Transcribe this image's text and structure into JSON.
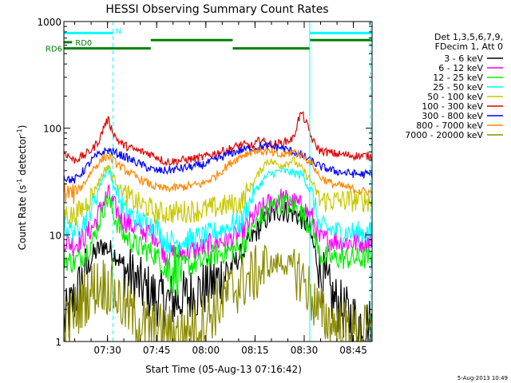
{
  "chart_data": {
    "type": "line",
    "title": "HESSI Observing Summary Count Rates",
    "xlabel": "Start Time (05-Aug-13 07:16:42)",
    "ylabel_main": "Count Rate (s",
    "ylabel_sup1": "-1",
    "ylabel_mid": " detector",
    "ylabel_sup2": "-1",
    "ylabel_end": ")",
    "yscale": "log",
    "ylim": [
      1,
      1000
    ],
    "xlim_minutes": [
      0,
      94
    ],
    "x_ticks": [
      {
        "label": "07:30",
        "min": 13.3
      },
      {
        "label": "07:45",
        "min": 28.3
      },
      {
        "label": "08:00",
        "min": 43.3
      },
      {
        "label": "08:15",
        "min": 58.3
      },
      {
        "label": "08:30",
        "min": 73.3
      },
      {
        "label": "08:45",
        "min": 88.3
      }
    ],
    "y_ticks": [
      {
        "label": "1",
        "value": 1
      },
      {
        "label": "10",
        "value": 10
      },
      {
        "label": "100",
        "value": 100
      },
      {
        "label": "1000",
        "value": 1000
      }
    ],
    "legend_header": [
      "Det 1,3,5,6,7,9,",
      "FDecim 1, Att 0"
    ],
    "legend_position": "right",
    "footer_date": "5-Aug-2013 10:49",
    "series": [
      {
        "name": "3 - 6 keV",
        "color": "#000000",
        "x": [
          0,
          3,
          6,
          9,
          12,
          14,
          16,
          18,
          20,
          24,
          28,
          31,
          36,
          42,
          46,
          50,
          54,
          58,
          62,
          66,
          70,
          73,
          75,
          78,
          82,
          86,
          90,
          94
        ],
        "y": [
          1.5,
          2.4,
          4.0,
          6.5,
          8.0,
          7.2,
          6.5,
          5.0,
          4.2,
          3.2,
          2.6,
          2.4,
          2.5,
          3.0,
          3.6,
          4.5,
          6.5,
          10.0,
          14.5,
          17.0,
          16.0,
          14.0,
          11.0,
          4.5,
          2.5,
          1.8,
          1.5,
          1.4
        ]
      },
      {
        "name": "6 - 12 keV",
        "color": "#ff00ff",
        "x": [
          0,
          3,
          6,
          9,
          12,
          13.5,
          15,
          18,
          22,
          26,
          28,
          31,
          36,
          42,
          46,
          50,
          54,
          58,
          62,
          66,
          70,
          73,
          76,
          78,
          82,
          86,
          90,
          94
        ],
        "y": [
          9.0,
          8.0,
          9.5,
          12.0,
          20.0,
          24.0,
          19.0,
          14.0,
          11.5,
          10.5,
          10.0,
          6.5,
          6.8,
          7.5,
          8.5,
          9.0,
          10.0,
          15.0,
          19.0,
          22.0,
          20.0,
          18.0,
          14.0,
          9.0,
          9.0,
          8.5,
          8.5,
          9.0
        ]
      },
      {
        "name": "12 - 25 keV",
        "color": "#00ee00",
        "x": [
          0,
          3,
          6,
          9,
          12,
          13.5,
          15,
          18,
          22,
          26,
          28,
          31,
          36,
          42,
          46,
          50,
          54,
          58,
          62,
          66,
          70,
          73,
          76,
          78,
          82,
          86,
          90,
          94
        ],
        "y": [
          6.0,
          5.5,
          6.5,
          9.0,
          18.0,
          22.0,
          16.0,
          10.0,
          8.0,
          7.0,
          6.5,
          4.8,
          5.0,
          5.5,
          6.5,
          7.0,
          7.5,
          12.0,
          17.0,
          20.0,
          18.5,
          15.0,
          11.0,
          6.5,
          6.0,
          6.0,
          6.0,
          6.0
        ]
      },
      {
        "name": "25 - 50 keV",
        "color": "#00ffff",
        "x": [
          0,
          3,
          6,
          9,
          12,
          13.5,
          15,
          18,
          22,
          26,
          28,
          31,
          36,
          42,
          46,
          50,
          54,
          58,
          62,
          66,
          70,
          73,
          76,
          78,
          82,
          86,
          90,
          94
        ],
        "y": [
          12.0,
          11.0,
          13.0,
          20.0,
          35.0,
          42.0,
          30.0,
          18.0,
          14.0,
          12.5,
          12.0,
          8.5,
          8.8,
          9.5,
          10.5,
          12.0,
          13.0,
          25.0,
          36.0,
          40.0,
          38.0,
          36.0,
          22.0,
          12.0,
          11.0,
          10.5,
          10.5,
          10.5
        ]
      },
      {
        "name": "50 - 100 keV",
        "color": "#c8c800",
        "x": [
          0,
          3,
          6,
          9,
          12,
          13.5,
          15,
          18,
          22,
          26,
          28,
          31,
          36,
          42,
          46,
          50,
          54,
          58,
          62,
          66,
          70,
          73,
          76,
          78,
          82,
          86,
          90,
          94
        ],
        "y": [
          16.0,
          15.0,
          18.0,
          25.0,
          38.0,
          45.0,
          35.0,
          25.0,
          20.0,
          18.0,
          16.0,
          16.0,
          16.5,
          17.0,
          18.0,
          19.0,
          20.0,
          32.0,
          50.0,
          45.0,
          50.0,
          40.0,
          30.0,
          21.0,
          21.0,
          21.0,
          21.0,
          21.0
        ]
      },
      {
        "name": "100 - 300 keV",
        "color": "#e00000",
        "x": [
          0,
          3,
          6,
          9,
          11,
          12.5,
          13.5,
          14.5,
          16,
          18,
          22,
          26,
          28,
          31,
          36,
          42,
          46,
          50,
          54,
          58,
          60,
          62,
          66,
          70,
          71.5,
          72.5,
          74,
          76,
          78,
          82,
          86,
          90,
          94
        ],
        "y": [
          60.0,
          50.0,
          55.0,
          65.0,
          80.0,
          110.0,
          120.0,
          100.0,
          80.0,
          70.0,
          62.0,
          58.0,
          55.0,
          48.0,
          50.0,
          53.0,
          58.0,
          63.0,
          70.0,
          68.0,
          80.0,
          70.0,
          72.0,
          80.0,
          120.0,
          140.0,
          110.0,
          75.0,
          62.0,
          58.0,
          56.0,
          55.0,
          55.0
        ]
      },
      {
        "name": "300 - 800 keV",
        "color": "#0000ff",
        "x": [
          0,
          3,
          6,
          9,
          12,
          13.5,
          15,
          18,
          22,
          26,
          28,
          31,
          36,
          42,
          46,
          50,
          54,
          58,
          62,
          66,
          70,
          73,
          76,
          78,
          82,
          86,
          90,
          94
        ],
        "y": [
          35.0,
          32.0,
          40.0,
          52.0,
          60.0,
          62.0,
          60.0,
          55.0,
          48.0,
          42.0,
          40.0,
          40.0,
          42.0,
          45.0,
          50.0,
          57.0,
          62.0,
          66.0,
          68.0,
          66.0,
          60.0,
          55.0,
          48.0,
          44.0,
          40.0,
          38.0,
          37.0,
          37.0
        ]
      },
      {
        "name": "800 - 7000 keV",
        "color": "#ff8800",
        "x": [
          0,
          3,
          6,
          9,
          12,
          13.5,
          15,
          18,
          22,
          26,
          28,
          31,
          36,
          42,
          46,
          50,
          54,
          58,
          62,
          66,
          70,
          73,
          76,
          78,
          82,
          86,
          90,
          94
        ],
        "y": [
          25.0,
          24.0,
          30.0,
          42.0,
          52.0,
          55.0,
          50.0,
          42.0,
          35.0,
          30.0,
          28.0,
          27.0,
          28.0,
          30.0,
          35.0,
          45.0,
          55.0,
          62.0,
          60.0,
          55.0,
          60.0,
          55.0,
          45.0,
          35.0,
          30.0,
          28.0,
          26.0,
          25.0
        ]
      },
      {
        "name": "7000 - 20000 keV",
        "color": "#8b8b00",
        "x": [
          0,
          3,
          6,
          9,
          12,
          15,
          18,
          22,
          26,
          28,
          31,
          36,
          42,
          46,
          50,
          54,
          58,
          62,
          66,
          70,
          73,
          76,
          78,
          82,
          86,
          90,
          94
        ],
        "y": [
          1.3,
          1.8,
          2.5,
          3.2,
          3.5,
          3.0,
          2.2,
          1.6,
          1.3,
          1.3,
          1.2,
          1.2,
          1.5,
          2.0,
          2.8,
          3.5,
          4.2,
          5.0,
          5.5,
          5.0,
          3.8,
          2.5,
          1.8,
          1.5,
          1.3,
          1.2,
          1.2
        ]
      }
    ],
    "markers": [
      {
        "label": "",
        "color": "#00ffff",
        "y": 780,
        "segments": [
          [
            0,
            15
          ],
          [
            75,
            94
          ]
        ]
      },
      {
        "label": "N",
        "color": "#00ffff",
        "y": 820,
        "segments": []
      },
      {
        "label": "RD0",
        "color": "#008000",
        "y": 640,
        "segments": [
          [
            0,
            2.5
          ]
        ]
      },
      {
        "label": "RD6",
        "color": "#008000",
        "y": 560,
        "segments": [
          [
            0,
            26.5
          ],
          [
            51.5,
            75
          ]
        ]
      },
      {
        "label": "",
        "color": "#008000",
        "y": 670,
        "segments": [
          [
            26.5,
            51.5
          ],
          [
            75,
            94
          ]
        ]
      }
    ],
    "vlines": [
      {
        "min": 0,
        "color": "#00ffff",
        "style": "solid"
      },
      {
        "min": 15,
        "color": "#00ffff",
        "style": "dashed"
      },
      {
        "min": 75,
        "color": "#00ffff",
        "style": "solid"
      },
      {
        "min": 93.5,
        "color": "#00ffff",
        "style": "dashed"
      }
    ],
    "grid": false
  }
}
